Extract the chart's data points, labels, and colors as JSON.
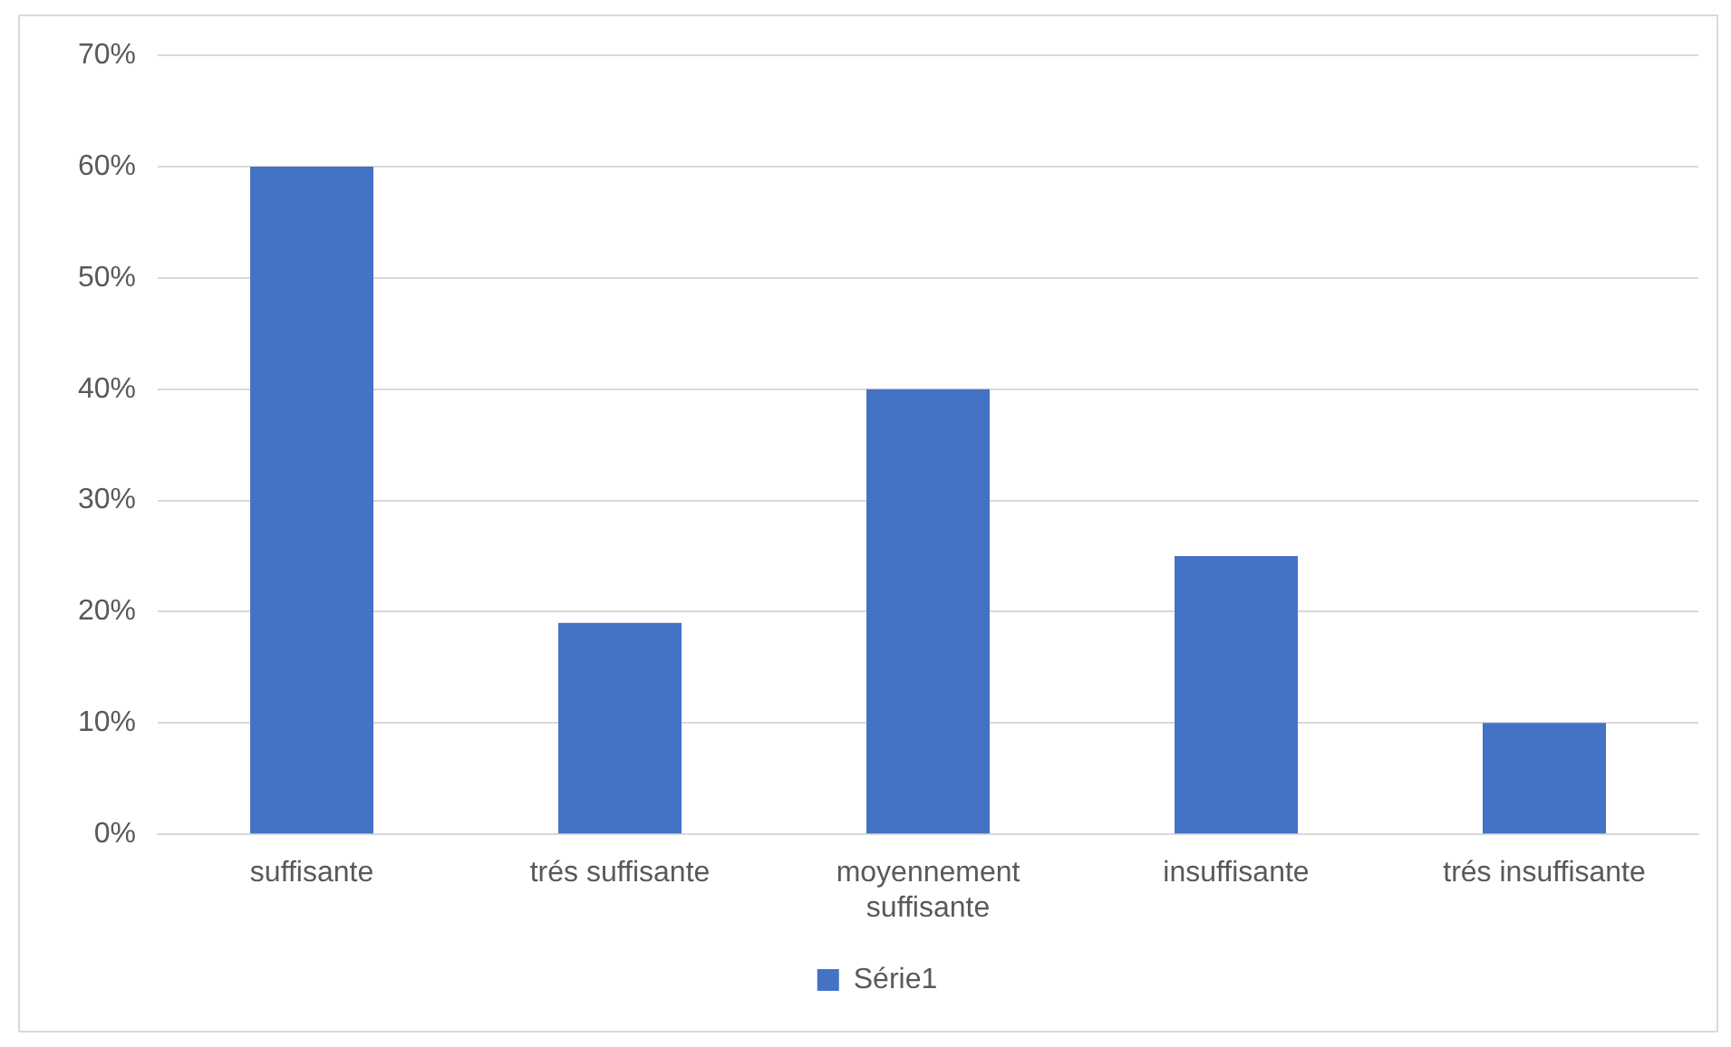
{
  "chart_data": {
    "type": "bar",
    "categories": [
      "suffisante",
      "trés suffisante",
      "moyennement suffisante",
      "insuffisante",
      "trés insuffisante"
    ],
    "series": [
      {
        "name": "Série1",
        "color": "#4472c4",
        "values": [
          60,
          19,
          40,
          25,
          10
        ]
      }
    ],
    "ylim": [
      0,
      70
    ],
    "yticks": [
      {
        "value": 0,
        "label": "0%"
      },
      {
        "value": 10,
        "label": "10%"
      },
      {
        "value": 20,
        "label": "20%"
      },
      {
        "value": 30,
        "label": "30%"
      },
      {
        "value": 40,
        "label": "40%"
      },
      {
        "value": 50,
        "label": "50%"
      },
      {
        "value": 60,
        "label": "60%"
      },
      {
        "value": 70,
        "label": "70%"
      }
    ],
    "grid": "y",
    "legend": "bottom"
  }
}
